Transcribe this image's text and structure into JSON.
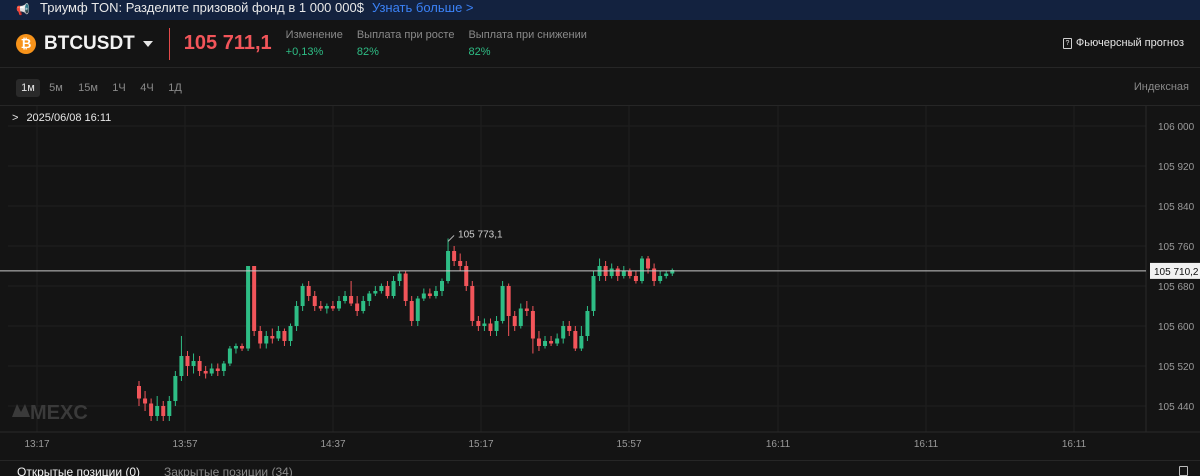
{
  "banner": {
    "icon": "megaphone-icon",
    "text": "Триумф TON: Разделите призовой фонд в 1 000 000$",
    "link": "Узнать больше >"
  },
  "header": {
    "coin_icon": "bitcoin-icon",
    "coin_glyph": "₿",
    "symbol": "BTCUSDT",
    "price": "105 711,1",
    "stats": [
      {
        "label": "Изменение",
        "value": "+0,13%"
      },
      {
        "label": "Выплата при росте",
        "value": "82%"
      },
      {
        "label": "Выплата при снижении",
        "value": "82%"
      }
    ],
    "forecast_label": "Фьючерсный прогноз",
    "accent_down": "#f2555a",
    "accent_up": "#2ebd85"
  },
  "toolbar": {
    "timeframes": [
      "1м",
      "5м",
      "15м",
      "1Ч",
      "4Ч",
      "1Д"
    ],
    "active_timeframe": "1м",
    "index_label": "Индексная"
  },
  "chart": {
    "date_label": "2025/06/08 16:11",
    "watermark": "MEXC",
    "current_price_label": "105 710,2",
    "high_label": "105 773,1",
    "y_ticks": [
      "106 000",
      "105 920",
      "105 840",
      "105 760",
      "105 680",
      "105 600",
      "105 520",
      "105 440"
    ],
    "x_ticks": [
      "13:17",
      "13:57",
      "14:37",
      "15:17",
      "15:57",
      "16:11",
      "16:11",
      "16:11"
    ]
  },
  "chart_data": {
    "type": "candlestick",
    "y_unit": "USDT",
    "ylim": [
      105410,
      106010
    ],
    "current_price": 105710.2,
    "high_marker": 105773.1,
    "y_ticks": [
      106000,
      105920,
      105840,
      105760,
      105680,
      105600,
      105520,
      105440
    ],
    "x_ticks": [
      "13:17",
      "13:57",
      "14:37",
      "15:17",
      "15:57",
      "16:11",
      "16:11",
      "16:11"
    ],
    "candles": [
      [
        105480,
        105455,
        105490,
        105440
      ],
      [
        105455,
        105445,
        105470,
        105430
      ],
      [
        105445,
        105420,
        105455,
        105410
      ],
      [
        105420,
        105440,
        105460,
        105410
      ],
      [
        105440,
        105420,
        105450,
        105410
      ],
      [
        105420,
        105450,
        105460,
        105410
      ],
      [
        105450,
        105500,
        105510,
        105440
      ],
      [
        105500,
        105540,
        105580,
        105490
      ],
      [
        105540,
        105520,
        105550,
        105500
      ],
      [
        105520,
        105530,
        105545,
        105505
      ],
      [
        105530,
        105510,
        105540,
        105500
      ],
      [
        105510,
        105505,
        105520,
        105495
      ],
      [
        105505,
        105515,
        105525,
        105500
      ],
      [
        105515,
        105510,
        105525,
        105500
      ],
      [
        105510,
        105525,
        105530,
        105500
      ],
      [
        105525,
        105555,
        105560,
        105520
      ],
      [
        105555,
        105560,
        105565,
        105545
      ],
      [
        105560,
        105555,
        105565,
        105550
      ],
      [
        105555,
        105720,
        105720,
        105550
      ],
      [
        105720,
        105590,
        105720,
        105580
      ],
      [
        105590,
        105565,
        105600,
        105555
      ],
      [
        105565,
        105580,
        105590,
        105555
      ],
      [
        105580,
        105575,
        105595,
        105565
      ],
      [
        105575,
        105590,
        105600,
        105570
      ],
      [
        105590,
        105570,
        105595,
        105560
      ],
      [
        105570,
        105600,
        105605,
        105560
      ],
      [
        105600,
        105640,
        105650,
        105590
      ],
      [
        105640,
        105680,
        105685,
        105630
      ],
      [
        105680,
        105660,
        105690,
        105650
      ],
      [
        105660,
        105640,
        105670,
        105630
      ],
      [
        105640,
        105635,
        105650,
        105630
      ],
      [
        105635,
        105640,
        105645,
        105625
      ],
      [
        105640,
        105635,
        105650,
        105630
      ],
      [
        105635,
        105650,
        105660,
        105630
      ],
      [
        105650,
        105660,
        105670,
        105645
      ],
      [
        105660,
        105645,
        105690,
        105640
      ],
      [
        105645,
        105630,
        105660,
        105620
      ],
      [
        105630,
        105650,
        105660,
        105625
      ],
      [
        105650,
        105665,
        105670,
        105640
      ],
      [
        105665,
        105670,
        105680,
        105660
      ],
      [
        105670,
        105680,
        105685,
        105665
      ],
      [
        105680,
        105660,
        105690,
        105655
      ],
      [
        105660,
        105690,
        105700,
        105655
      ],
      [
        105690,
        105705,
        105710,
        105680
      ],
      [
        105705,
        105650,
        105710,
        105640
      ],
      [
        105650,
        105610,
        105660,
        105600
      ],
      [
        105610,
        105655,
        105660,
        105600
      ],
      [
        105655,
        105665,
        105675,
        105650
      ],
      [
        105665,
        105660,
        105675,
        105655
      ],
      [
        105660,
        105670,
        105680,
        105655
      ],
      [
        105670,
        105690,
        105695,
        105660
      ],
      [
        105690,
        105750,
        105775,
        105685
      ],
      [
        105750,
        105730,
        105760,
        105720
      ],
      [
        105730,
        105720,
        105745,
        105710
      ],
      [
        105720,
        105680,
        105730,
        105670
      ],
      [
        105680,
        105610,
        105690,
        105600
      ],
      [
        105610,
        105600,
        105620,
        105590
      ],
      [
        105600,
        105605,
        105615,
        105590
      ],
      [
        105605,
        105590,
        105615,
        105580
      ],
      [
        105590,
        105610,
        105620,
        105580
      ],
      [
        105610,
        105680,
        105690,
        105605
      ],
      [
        105680,
        105620,
        105685,
        105580
      ],
      [
        105620,
        105600,
        105630,
        105590
      ],
      [
        105600,
        105635,
        105645,
        105595
      ],
      [
        105635,
        105630,
        105650,
        105620
      ],
      [
        105630,
        105575,
        105640,
        105545
      ],
      [
        105575,
        105560,
        105590,
        105550
      ],
      [
        105560,
        105570,
        105580,
        105555
      ],
      [
        105570,
        105565,
        105580,
        105560
      ],
      [
        105565,
        105575,
        105585,
        105560
      ],
      [
        105575,
        105600,
        105610,
        105565
      ],
      [
        105600,
        105590,
        105610,
        105580
      ],
      [
        105590,
        105555,
        105600,
        105550
      ],
      [
        105555,
        105580,
        105600,
        105550
      ],
      [
        105580,
        105630,
        105640,
        105570
      ],
      [
        105630,
        105700,
        105710,
        105620
      ],
      [
        105700,
        105720,
        105735,
        105690
      ],
      [
        105720,
        105700,
        105730,
        105690
      ],
      [
        105700,
        105715,
        105725,
        105695
      ],
      [
        105715,
        105700,
        105720,
        105690
      ],
      [
        105700,
        105710,
        105720,
        105695
      ],
      [
        105710,
        105700,
        105715,
        105695
      ],
      [
        105700,
        105690,
        105710,
        105685
      ],
      [
        105690,
        105735,
        105740,
        105685
      ],
      [
        105735,
        105715,
        105740,
        105705
      ],
      [
        105715,
        105690,
        105725,
        105680
      ],
      [
        105690,
        105700,
        105710,
        105685
      ],
      [
        105700,
        105705,
        105710,
        105695
      ],
      [
        105705,
        105712,
        105715,
        105700
      ]
    ]
  }
}
